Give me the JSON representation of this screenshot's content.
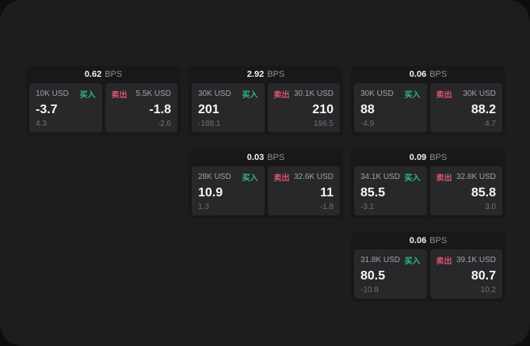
{
  "labels": {
    "buy": "买入",
    "sell": "卖出",
    "bps_unit": "BPS"
  },
  "colors": {
    "buy_green": "#2ebd7e",
    "sell_red": "#d8556c",
    "window_bg": "#1d1d1f",
    "card_bg": "#18181a",
    "panel_bg": "#28282b",
    "value_text": "#f5f5f6",
    "muted_text": "#a0a0a6",
    "delta_text": "#707076"
  },
  "cards": [
    {
      "bps": "0.62",
      "buy": {
        "size": "10K USD",
        "value": "-3.7",
        "delta": "4.3"
      },
      "sell": {
        "size": "5.5K USD",
        "value": "-1.8",
        "delta": "-2.6"
      }
    },
    {
      "bps": "2.92",
      "buy": {
        "size": "30K USD",
        "value": "201",
        "delta": "-188.1"
      },
      "sell": {
        "size": "30.1K USD",
        "value": "210",
        "delta": "196.5"
      }
    },
    {
      "bps": "0.06",
      "buy": {
        "size": "30K USD",
        "value": "88",
        "delta": "-4.9"
      },
      "sell": {
        "size": "30K USD",
        "value": "88.2",
        "delta": "4.7"
      }
    },
    {
      "bps": "0.03",
      "buy": {
        "size": "28K USD",
        "value": "10.9",
        "delta": "1.3"
      },
      "sell": {
        "size": "32.6K USD",
        "value": "11",
        "delta": "-1.8"
      }
    },
    {
      "bps": "0.09",
      "buy": {
        "size": "34.1K USD",
        "value": "85.5",
        "delta": "-3.1"
      },
      "sell": {
        "size": "32.8K USD",
        "value": "85.8",
        "delta": "3.0"
      }
    },
    {
      "bps": "0.06",
      "buy": {
        "size": "31.8K USD",
        "value": "80.5",
        "delta": "-10.8"
      },
      "sell": {
        "size": "39.1K USD",
        "value": "80.7",
        "delta": "10.2"
      }
    }
  ]
}
